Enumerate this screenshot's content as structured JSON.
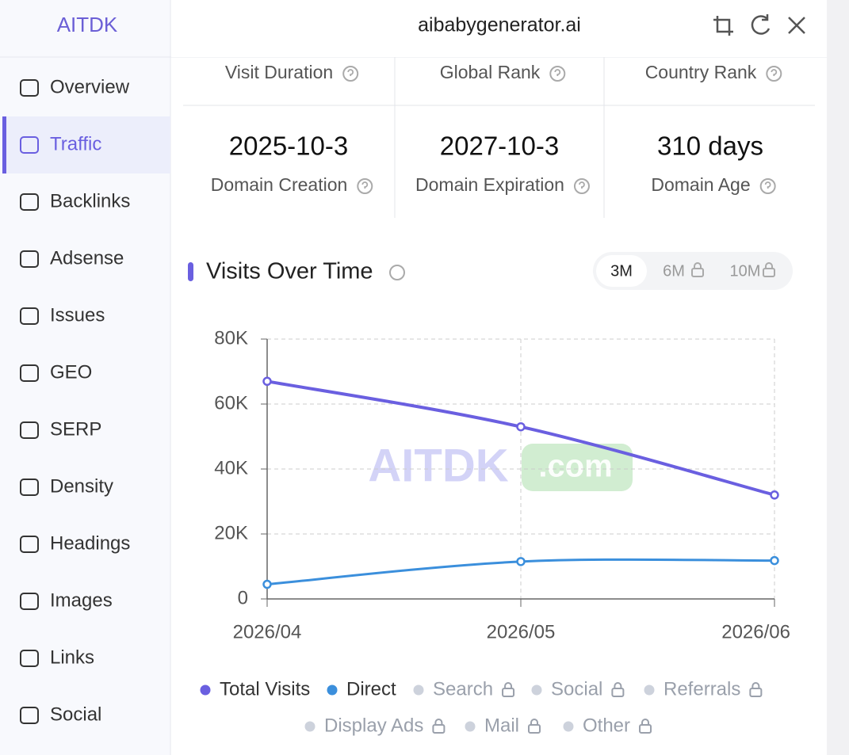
{
  "header": {
    "logo": "AITDK",
    "domain": "aibabygenerator.ai"
  },
  "sidebar": {
    "items": [
      "Overview",
      "Traffic",
      "Backlinks",
      "Adsense",
      "Issues",
      "GEO",
      "SERP",
      "Density",
      "Headings",
      "Images",
      "Links",
      "Social"
    ],
    "active": 1
  },
  "stats": {
    "top_labels": [
      "Visit Duration",
      "Global Rank",
      "Country Rank"
    ],
    "cards": [
      {
        "value": "2025-10-3",
        "label": "Domain Creation"
      },
      {
        "value": "2027-10-3",
        "label": "Domain Expiration"
      },
      {
        "value": "310 days",
        "label": "Domain Age"
      }
    ]
  },
  "ranges": [
    "3M",
    "6M",
    "10M"
  ],
  "watermark": [
    "AITDK",
    ".com"
  ],
  "chart_data": {
    "type": "line",
    "title": "Visits Over Time",
    "categories": [
      "2026/04",
      "2026/05",
      "2026/06"
    ],
    "series": [
      {
        "name": "Total Visits",
        "color": "#6a5fe0",
        "values": [
          67000,
          53000,
          32000
        ]
      },
      {
        "name": "Direct",
        "color": "#3b8fdc",
        "values": [
          4500,
          11500,
          11800
        ]
      }
    ],
    "locked_legend": [
      "Search",
      "Social",
      "Referrals",
      "Display Ads",
      "Mail",
      "Other"
    ],
    "ylim": [
      0,
      80000
    ],
    "yticks": [
      0,
      {
        "value": 20000,
        "label": "20K"
      },
      {
        "value": 40000,
        "label": "40K"
      },
      {
        "value": 60000,
        "label": "60K"
      },
      {
        "value": 80000,
        "label": "80K"
      }
    ],
    "grid": true
  }
}
